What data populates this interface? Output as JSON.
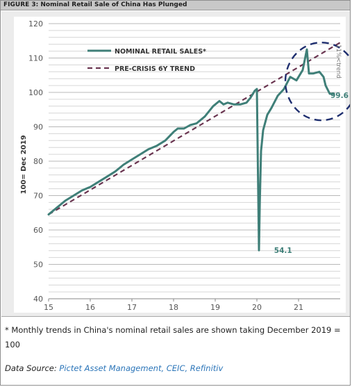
{
  "figure_header": "FIGURE 3: Nominal Retail Sale of China Has Plunged",
  "caption": "* Monthly trends in China's nominal retail sales are shown taking December 2019 = 100",
  "source": {
    "prefix": "Data Source: ",
    "links": "Pictet Asset Management, CEIC, Refinitiv"
  },
  "colors": {
    "retail_line": "#3f7f78",
    "trend_line": "#6a3550",
    "highlight_circle": "#1f2f6f",
    "chart_background": "#ffffff",
    "panel_background": "#ececec"
  },
  "chart_data": {
    "type": "line",
    "xlabel": "",
    "ylabel": "100= Dec 2019",
    "xlim": [
      15,
      22
    ],
    "ylim": [
      40,
      120
    ],
    "x_ticks": [
      "15",
      "16",
      "17",
      "18",
      "19",
      "20",
      "21"
    ],
    "y_ticks": [
      "40",
      "50",
      "60",
      "70",
      "80",
      "90",
      "100",
      "110",
      "120"
    ],
    "grid": true,
    "legend_position": "top-left",
    "series": [
      {
        "name": "NOMINAL RETAIL SALES*",
        "style": "solid",
        "x": [
          15.0,
          15.2,
          15.4,
          15.6,
          15.8,
          16.0,
          16.2,
          16.4,
          16.6,
          16.8,
          17.0,
          17.2,
          17.4,
          17.6,
          17.8,
          18.0,
          18.1,
          18.25,
          18.4,
          18.55,
          18.75,
          18.95,
          19.1,
          19.2,
          19.3,
          19.45,
          19.6,
          19.75,
          19.85,
          19.95,
          20.0,
          20.05,
          20.07,
          20.1,
          20.15,
          20.25,
          20.35,
          20.5,
          20.65,
          20.8,
          20.95,
          21.1,
          21.2,
          21.25,
          21.35,
          21.5,
          21.6,
          21.65,
          21.75,
          21.85
        ],
        "y": [
          64.5,
          66.5,
          68.5,
          70,
          71.5,
          72.5,
          74,
          75.5,
          77,
          79,
          80.5,
          82,
          83.5,
          84.5,
          86,
          88.5,
          89.5,
          89.5,
          90.5,
          91,
          93,
          96,
          97.5,
          96.5,
          97,
          96.5,
          96.5,
          97,
          98.5,
          100.5,
          101,
          54.1,
          68,
          83,
          89,
          93.5,
          95.5,
          99,
          101,
          104.5,
          103.5,
          106.5,
          112.5,
          105.5,
          105.5,
          106,
          104.5,
          102,
          99.6,
          99.6
        ]
      },
      {
        "name": "PRE-CRISIS 6Y TREND",
        "style": "dashed",
        "x": [
          15.0,
          22.0
        ],
        "y": [
          64.5,
          114.5
        ]
      }
    ],
    "annotations": [
      {
        "text": "54.1",
        "x": 20.28,
        "y": 54.1
      },
      {
        "text": "99.6",
        "x": 21.8,
        "y": 99.6
      },
      {
        "text": "11%<trend",
        "x": 21.95,
        "y": 109,
        "rotated": true
      }
    ]
  }
}
